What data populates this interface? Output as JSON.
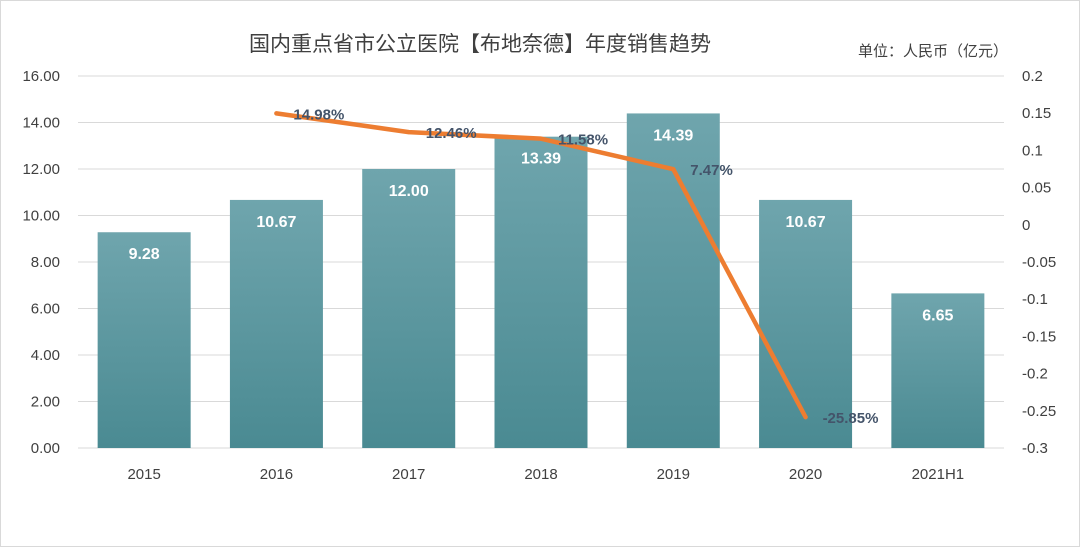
{
  "chart_data": {
    "type": "bar",
    "title": "国内重点省市公立医院【布地奈德】年度销售趋势",
    "unit_label": "单位：人民币（亿元）",
    "categories": [
      "2015",
      "2016",
      "2017",
      "2018",
      "2019",
      "2020",
      "2021H1"
    ],
    "series": [
      {
        "type": "bar",
        "axis": "left",
        "values": [
          9.28,
          10.67,
          12.0,
          13.39,
          14.39,
          10.67,
          6.65
        ],
        "labels": [
          "9.28",
          "10.67",
          "12.00",
          "13.39",
          "14.39",
          "10.67",
          "6.65"
        ],
        "color": "#5b9aa0"
      },
      {
        "type": "line",
        "axis": "right",
        "values": [
          null,
          0.1498,
          0.1246,
          0.1158,
          0.0747,
          -0.2585,
          null
        ],
        "labels": [
          "",
          "14.98%",
          "12.46%",
          "11.58%",
          "7.47%",
          "-25.85%",
          ""
        ],
        "color": "#ed7d31"
      }
    ],
    "y_left": {
      "ylim": [
        0,
        16
      ],
      "ticks": [
        "0.00",
        "2.00",
        "4.00",
        "6.00",
        "8.00",
        "10.00",
        "12.00",
        "14.00",
        "16.00"
      ]
    },
    "y_right": {
      "ylim": [
        -0.3,
        0.2
      ],
      "ticks": [
        "-0.3",
        "-0.25",
        "-0.2",
        "-0.15",
        "-0.1",
        "-0.05",
        "0",
        "0.05",
        "0.1",
        "0.15",
        "0.2"
      ]
    },
    "grid": true,
    "legend": "none"
  }
}
